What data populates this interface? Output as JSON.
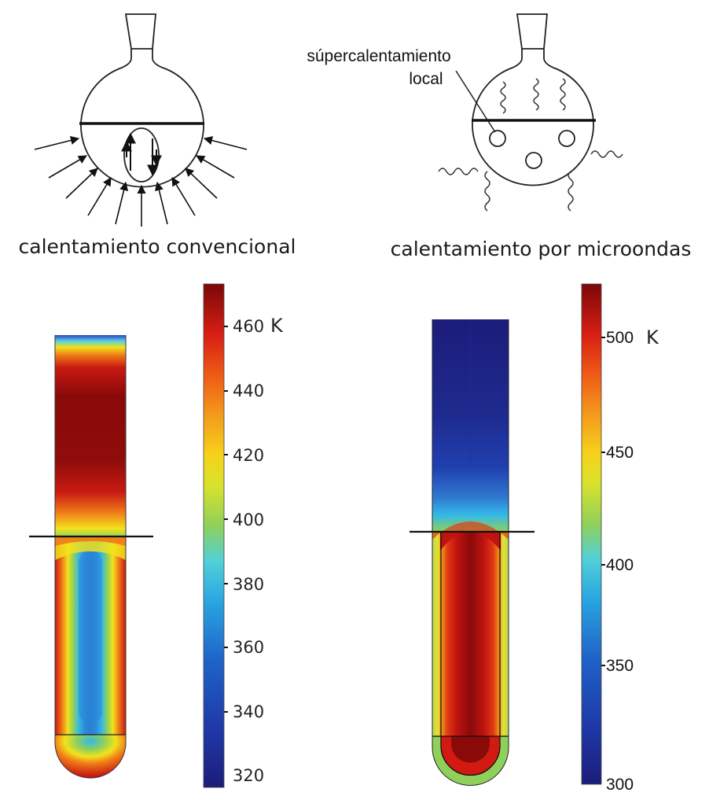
{
  "captions": {
    "conventional": "calentamiento convencional",
    "microwave": "calentamiento por microondas",
    "hotspot_label_line1": "súpercalentamiento",
    "hotspot_label_line2": "local"
  },
  "colorbars": {
    "left": {
      "ticks": [
        "460",
        "440",
        "420",
        "400",
        "380",
        "360",
        "340",
        "320"
      ],
      "unit": "K"
    },
    "right": {
      "ticks": [
        "500",
        "450",
        "400",
        "350",
        "300"
      ],
      "unit": "K"
    }
  },
  "colors": {
    "jet_dark_blue": "#1c1c7a",
    "jet_blue": "#1f5fc0",
    "jet_cyan": "#33b8e8",
    "jet_green": "#8fd05a",
    "jet_yellow": "#f2e21c",
    "jet_orange": "#f47a1c",
    "jet_red": "#d81e14",
    "jet_dark_red": "#8a0a0a"
  },
  "icons": {
    "conventional_flask": "round-bottom-flask-heated-externally",
    "microwave_flask": "round-bottom-flask-microwave-heated"
  }
}
